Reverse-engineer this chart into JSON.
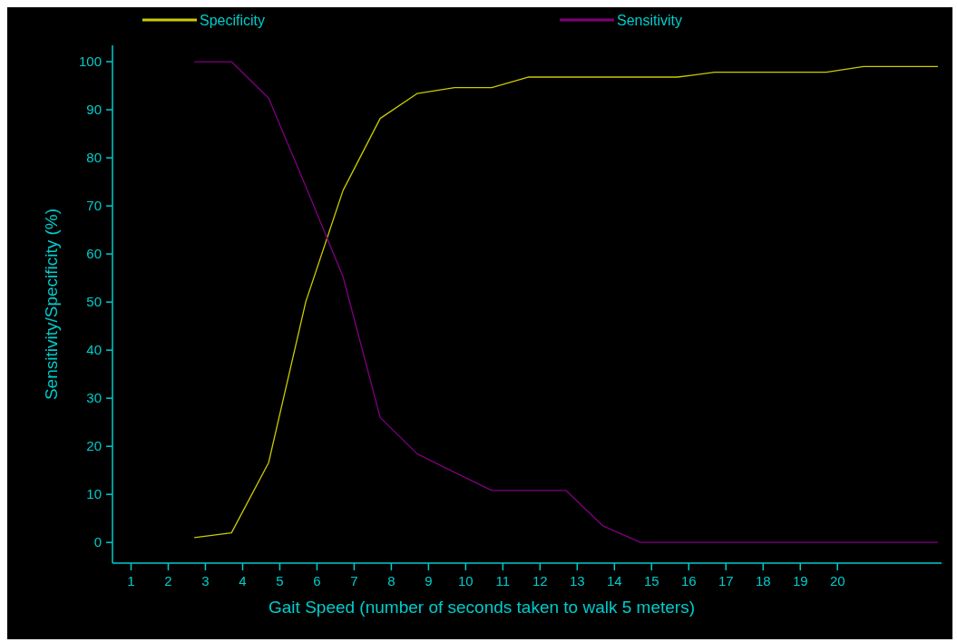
{
  "chart_data": {
    "type": "line",
    "xlabel": "Gait Speed (number of seconds taken to walk 5 meters)",
    "ylabel": "Sensitivity/Specificity (%)",
    "x": [
      2.7,
      3.7,
      4.7,
      5.7,
      6.7,
      7.7,
      8.7,
      9.7,
      10.7,
      11.7,
      12.7,
      13.7,
      14.7,
      15.7,
      16.7,
      17.7,
      18.7,
      19.7,
      20.7,
      21.7,
      22.7
    ],
    "series": [
      {
        "name": "Specificity",
        "color": "#cccc00",
        "values": [
          1,
          2,
          16.6,
          50.1,
          73.2,
          88.2,
          93.4,
          94.6,
          94.6,
          96.8,
          96.8,
          96.8,
          96.8,
          96.8,
          97.8,
          97.8,
          97.8,
          97.8,
          99,
          99,
          99
        ]
      },
      {
        "name": "Sensitivity",
        "color": "#800080",
        "values": [
          100,
          100,
          92.4,
          74,
          55.3,
          26,
          18.4,
          14.6,
          10.8,
          10.8,
          10.8,
          3.4,
          0,
          0,
          0,
          0,
          0,
          0,
          0,
          0,
          0
        ]
      }
    ],
    "xlim": [
      0.5,
      22.8
    ],
    "xticks": [
      1,
      2,
      3,
      4,
      5,
      6,
      7,
      8,
      9,
      10,
      11,
      12,
      13,
      14,
      15,
      16,
      17,
      18,
      19,
      20
    ],
    "ylim": [
      -4.3,
      103.4
    ],
    "yticks": [
      0,
      10,
      20,
      30,
      40,
      50,
      60,
      70,
      80,
      90,
      100
    ],
    "legend": "top",
    "grid": false,
    "marker": "none",
    "line_style": "solid"
  }
}
